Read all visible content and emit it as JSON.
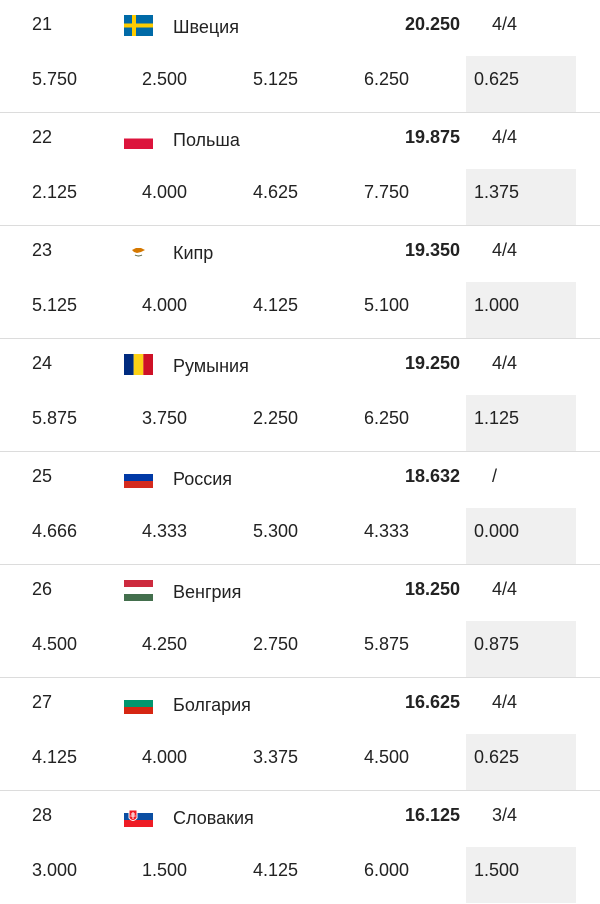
{
  "rows": [
    {
      "rank": "21",
      "country": "Швеция",
      "flag_icon": "sweden-flag-icon",
      "total": "20.250",
      "qual": "4/4",
      "values": [
        "5.750",
        "2.500",
        "5.125",
        "6.250",
        "0.625"
      ]
    },
    {
      "rank": "22",
      "country": "Польша",
      "flag_icon": "poland-flag-icon",
      "total": "19.875",
      "qual": "4/4",
      "values": [
        "2.125",
        "4.000",
        "4.625",
        "7.750",
        "1.375"
      ]
    },
    {
      "rank": "23",
      "country": "Кипр",
      "flag_icon": "cyprus-flag-icon",
      "total": "19.350",
      "qual": "4/4",
      "values": [
        "5.125",
        "4.000",
        "4.125",
        "5.100",
        "1.000"
      ]
    },
    {
      "rank": "24",
      "country": "Румыния",
      "flag_icon": "romania-flag-icon",
      "total": "19.250",
      "qual": "4/4",
      "values": [
        "5.875",
        "3.750",
        "2.250",
        "6.250",
        "1.125"
      ]
    },
    {
      "rank": "25",
      "country": "Россия",
      "flag_icon": "russia-flag-icon",
      "total": "18.632",
      "qual": "/",
      "values": [
        "4.666",
        "4.333",
        "5.300",
        "4.333",
        "0.000"
      ]
    },
    {
      "rank": "26",
      "country": "Венгрия",
      "flag_icon": "hungary-flag-icon",
      "total": "18.250",
      "qual": "4/4",
      "values": [
        "4.500",
        "4.250",
        "2.750",
        "5.875",
        "0.875"
      ]
    },
    {
      "rank": "27",
      "country": "Болгария",
      "flag_icon": "bulgaria-flag-icon",
      "total": "16.625",
      "qual": "4/4",
      "values": [
        "4.125",
        "4.000",
        "3.375",
        "4.500",
        "0.625"
      ]
    },
    {
      "rank": "28",
      "country": "Словакия",
      "flag_icon": "slovakia-flag-icon",
      "total": "16.125",
      "qual": "3/4",
      "values": [
        "3.000",
        "1.500",
        "4.125",
        "6.000",
        "1.500"
      ]
    }
  ],
  "colors": {
    "text": "#222222",
    "divider": "#dcdcdc",
    "last_column_bg": "#f0f0f0"
  }
}
